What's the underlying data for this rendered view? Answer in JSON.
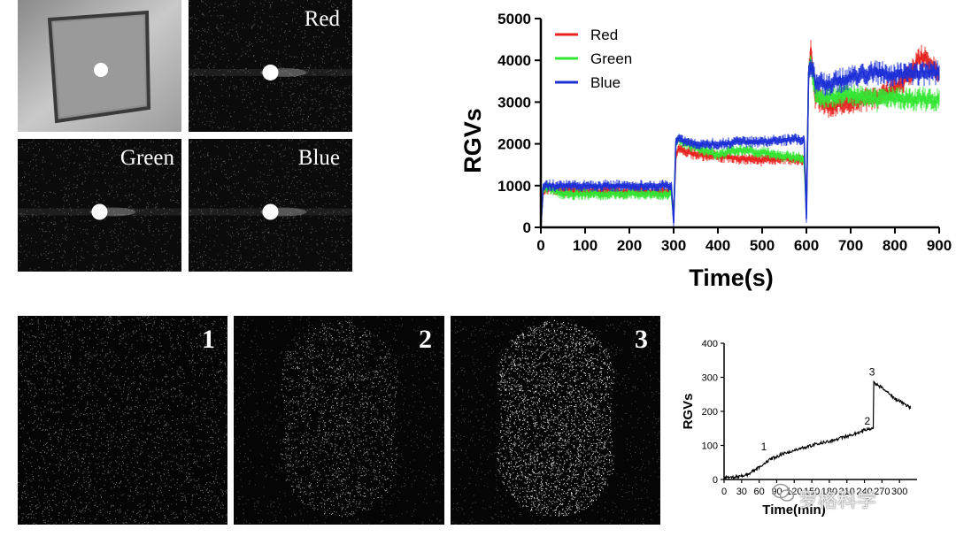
{
  "images": {
    "top": [
      {
        "label": ""
      },
      {
        "label": "Red"
      },
      {
        "label": "Green"
      },
      {
        "label": "Blue"
      }
    ],
    "bottom": [
      {
        "label": "1"
      },
      {
        "label": "2"
      },
      {
        "label": "3"
      }
    ]
  },
  "chart_data": [
    {
      "type": "line",
      "title": "",
      "xlabel": "Time(s)",
      "ylabel": "RGVs",
      "xlim": [
        0,
        900
      ],
      "ylim": [
        0,
        5000
      ],
      "xticks": [
        0,
        100,
        200,
        300,
        400,
        500,
        600,
        700,
        800,
        900
      ],
      "yticks": [
        0,
        1000,
        2000,
        3000,
        4000,
        5000
      ],
      "legend": [
        "Red",
        "Green",
        "Blue"
      ],
      "series": [
        {
          "name": "Red",
          "color": "#e8231f",
          "x": [
            0,
            5,
            10,
            50,
            100,
            150,
            200,
            250,
            295,
            300,
            305,
            310,
            350,
            400,
            450,
            500,
            550,
            595,
            600,
            605,
            610,
            620,
            650,
            700,
            750,
            800,
            830,
            860,
            900
          ],
          "y": [
            0,
            850,
            900,
            880,
            860,
            870,
            860,
            860,
            870,
            300,
            1700,
            1850,
            1750,
            1700,
            1650,
            1600,
            1650,
            1600,
            500,
            3700,
            4200,
            3100,
            2900,
            3000,
            3100,
            3300,
            3600,
            4100,
            3700
          ]
        },
        {
          "name": "Green",
          "color": "#33e633",
          "x": [
            0,
            5,
            10,
            50,
            100,
            150,
            200,
            250,
            295,
            300,
            305,
            310,
            350,
            400,
            450,
            500,
            550,
            595,
            600,
            605,
            610,
            620,
            650,
            700,
            750,
            800,
            850,
            900
          ],
          "y": [
            0,
            900,
            950,
            800,
            790,
            800,
            810,
            800,
            800,
            200,
            2000,
            2100,
            1900,
            1750,
            1850,
            1800,
            1700,
            1650,
            300,
            3700,
            4000,
            3200,
            3100,
            3200,
            3050,
            3100,
            3050,
            3100
          ]
        },
        {
          "name": "Blue",
          "color": "#1c2fd6",
          "x": [
            0,
            5,
            10,
            50,
            100,
            150,
            200,
            250,
            295,
            300,
            305,
            310,
            350,
            400,
            450,
            500,
            550,
            595,
            600,
            605,
            610,
            620,
            650,
            700,
            750,
            800,
            850,
            900
          ],
          "y": [
            0,
            950,
            1000,
            1000,
            990,
            1000,
            1000,
            990,
            1000,
            100,
            2050,
            2100,
            2000,
            2000,
            2050,
            2050,
            2100,
            2100,
            200,
            3700,
            3900,
            3500,
            3400,
            3600,
            3700,
            3650,
            3650,
            3700
          ]
        }
      ]
    },
    {
      "type": "line",
      "title": "",
      "xlabel": "Time(min)",
      "ylabel": "RGVs",
      "xlim": [
        0,
        330
      ],
      "ylim": [
        0,
        400
      ],
      "xtick_labels": [
        "0",
        "30",
        "60",
        "90",
        "120",
        "150",
        "180",
        "210",
        "240",
        "270",
        "300"
      ],
      "yticks": [
        0,
        100,
        200,
        300,
        400
      ],
      "annotations": [
        {
          "text": "1",
          "x": 68,
          "y": 70
        },
        {
          "text": "2",
          "x": 245,
          "y": 145
        },
        {
          "text": "3",
          "x": 253,
          "y": 290
        }
      ],
      "series": [
        {
          "name": "RGVs",
          "color": "#000000",
          "x": [
            0,
            20,
            40,
            60,
            80,
            100,
            120,
            140,
            160,
            180,
            200,
            220,
            240,
            255,
            256,
            260,
            270,
            280,
            290,
            300,
            310,
            320
          ],
          "y": [
            5,
            8,
            15,
            35,
            60,
            75,
            85,
            95,
            105,
            112,
            122,
            132,
            145,
            150,
            285,
            280,
            270,
            255,
            240,
            230,
            220,
            210
          ]
        }
      ]
    }
  ],
  "watermark": "罗格科学"
}
